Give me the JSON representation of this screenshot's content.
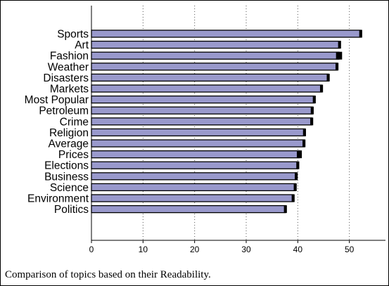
{
  "caption": "Comparison of topics based on their Readability.",
  "colors": {
    "bar_fill": "#9999cc",
    "bar_stroke": "#000000",
    "grid": "#555555",
    "axis": "#000000"
  },
  "chart_data": {
    "type": "bar",
    "orientation": "horizontal",
    "title": "",
    "xlabel": "",
    "ylabel": "",
    "categories": [
      "Sports",
      "Art",
      "Fashion",
      "Weather",
      "Disasters",
      "Markets",
      "Most Popular",
      "Petroleum",
      "Crime",
      "Religion",
      "Average",
      "Prices",
      "Elections",
      "Business",
      "Science",
      "Environment",
      "Politics"
    ],
    "values": [
      52.2,
      48.1,
      48.0,
      47.6,
      45.9,
      44.6,
      43.2,
      42.8,
      42.7,
      41.3,
      41.2,
      40.3,
      40.0,
      39.7,
      39.5,
      39.1,
      37.6
    ],
    "errors": [
      0.15,
      0.15,
      0.45,
      0.15,
      0.15,
      0.15,
      0.15,
      0.15,
      0.15,
      0.15,
      0.15,
      0.35,
      0.15,
      0.15,
      0.15,
      0.15,
      0.15
    ],
    "xlim": [
      0,
      57
    ],
    "xticks": [
      0,
      10,
      20,
      30,
      40,
      50
    ],
    "grid": "vertical dotted"
  }
}
